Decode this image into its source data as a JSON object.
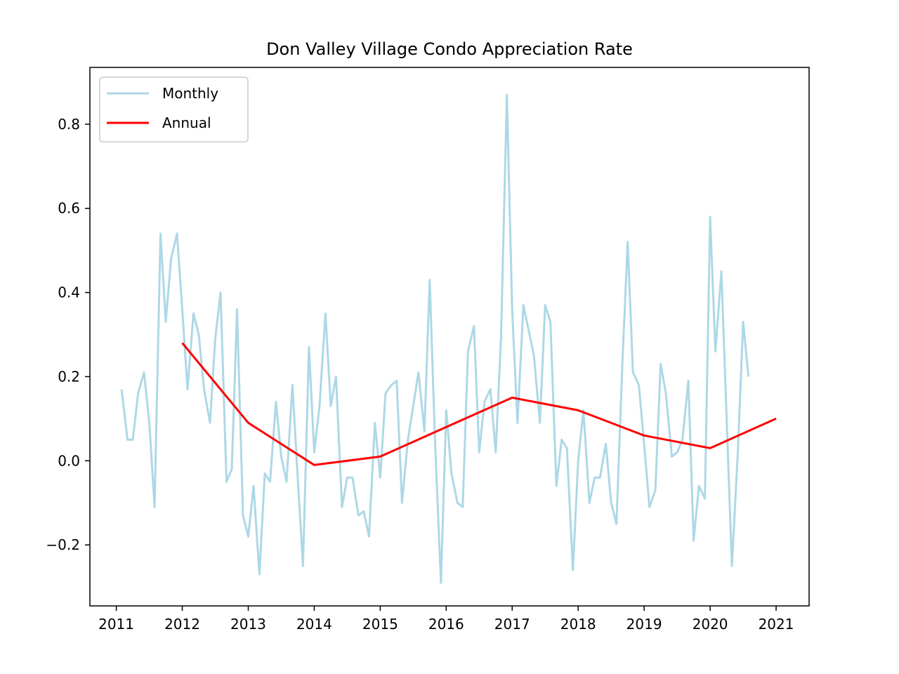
{
  "chart_data": {
    "type": "line",
    "title": "Don Valley Village Condo Appreciation Rate",
    "xlabel": "",
    "ylabel": "",
    "xlim": [
      2010.6,
      2021.5
    ],
    "ylim": [
      -0.345,
      0.935
    ],
    "x_ticks": [
      2011,
      2012,
      2013,
      2014,
      2015,
      2016,
      2017,
      2018,
      2019,
      2020,
      2021
    ],
    "x_tick_labels": [
      "2011",
      "2012",
      "2013",
      "2014",
      "2015",
      "2016",
      "2017",
      "2018",
      "2019",
      "2020",
      "2021"
    ],
    "y_ticks": [
      -0.2,
      0.0,
      0.2,
      0.4,
      0.6,
      0.8
    ],
    "y_tick_labels": [
      "−0.2",
      "0.0",
      "0.2",
      "0.4",
      "0.6",
      "0.8"
    ],
    "legend_position": "top-left",
    "grid": false,
    "series": [
      {
        "name": "Monthly",
        "color": "#add8e6",
        "x": [
          2011.08,
          2011.17,
          2011.25,
          2011.33,
          2011.42,
          2011.5,
          2011.58,
          2011.67,
          2011.75,
          2011.83,
          2011.92,
          2012.0,
          2012.08,
          2012.17,
          2012.25,
          2012.33,
          2012.42,
          2012.5,
          2012.58,
          2012.67,
          2012.75,
          2012.83,
          2012.92,
          2013.0,
          2013.08,
          2013.17,
          2013.25,
          2013.33,
          2013.42,
          2013.5,
          2013.58,
          2013.67,
          2013.75,
          2013.83,
          2013.92,
          2014.0,
          2014.08,
          2014.17,
          2014.25,
          2014.33,
          2014.42,
          2014.5,
          2014.58,
          2014.67,
          2014.75,
          2014.83,
          2014.92,
          2015.0,
          2015.08,
          2015.17,
          2015.25,
          2015.33,
          2015.42,
          2015.5,
          2015.58,
          2015.67,
          2015.75,
          2015.83,
          2015.92,
          2016.0,
          2016.08,
          2016.17,
          2016.25,
          2016.33,
          2016.42,
          2016.5,
          2016.58,
          2016.67,
          2016.75,
          2016.83,
          2016.92,
          2017.0,
          2017.08,
          2017.17,
          2017.25,
          2017.33,
          2017.42,
          2017.5,
          2017.58,
          2017.67,
          2017.75,
          2017.83,
          2017.92,
          2018.0,
          2018.08,
          2018.17,
          2018.25,
          2018.33,
          2018.42,
          2018.5,
          2018.58,
          2018.67,
          2018.75,
          2018.83,
          2018.92,
          2019.0,
          2019.08,
          2019.17,
          2019.25,
          2019.33,
          2019.42,
          2019.5,
          2019.58,
          2019.67,
          2019.75,
          2019.83,
          2019.92,
          2020.0,
          2020.08,
          2020.17,
          2020.25,
          2020.33,
          2020.42,
          2020.5,
          2020.58
        ],
        "values": [
          0.17,
          0.05,
          0.05,
          0.16,
          0.21,
          0.09,
          -0.11,
          0.54,
          0.33,
          0.48,
          0.54,
          0.36,
          0.17,
          0.35,
          0.3,
          0.17,
          0.09,
          0.29,
          0.4,
          -0.05,
          -0.02,
          0.36,
          -0.13,
          -0.18,
          -0.06,
          -0.27,
          -0.03,
          -0.05,
          0.14,
          0.01,
          -0.05,
          0.18,
          -0.04,
          -0.25,
          0.27,
          0.02,
          0.13,
          0.35,
          0.13,
          0.2,
          -0.11,
          -0.04,
          -0.04,
          -0.13,
          -0.12,
          -0.18,
          0.09,
          -0.04,
          0.16,
          0.18,
          0.19,
          -0.1,
          0.05,
          0.13,
          0.21,
          0.07,
          0.43,
          0.05,
          -0.29,
          0.12,
          -0.03,
          -0.1,
          -0.11,
          0.26,
          0.32,
          0.02,
          0.14,
          0.17,
          0.02,
          0.29,
          0.87,
          0.36,
          0.09,
          0.37,
          0.31,
          0.25,
          0.09,
          0.37,
          0.33,
          -0.06,
          0.05,
          0.03,
          -0.26,
          0.0,
          0.12,
          -0.1,
          -0.04,
          -0.04,
          0.04,
          -0.1,
          -0.15,
          0.23,
          0.52,
          0.21,
          0.18,
          0.04,
          -0.11,
          -0.07,
          0.23,
          0.16,
          0.01,
          0.02,
          0.05,
          0.19,
          -0.19,
          -0.06,
          -0.09,
          0.58,
          0.26,
          0.45,
          0.1,
          -0.25,
          0.02,
          0.33,
          0.2
        ]
      },
      {
        "name": "Annual",
        "color": "#ff0000",
        "x": [
          2012,
          2013,
          2014,
          2015,
          2016,
          2017,
          2018,
          2019,
          2020,
          2021
        ],
        "values": [
          0.28,
          0.09,
          -0.01,
          0.01,
          0.08,
          0.15,
          0.12,
          0.06,
          0.03,
          0.1
        ]
      }
    ]
  }
}
